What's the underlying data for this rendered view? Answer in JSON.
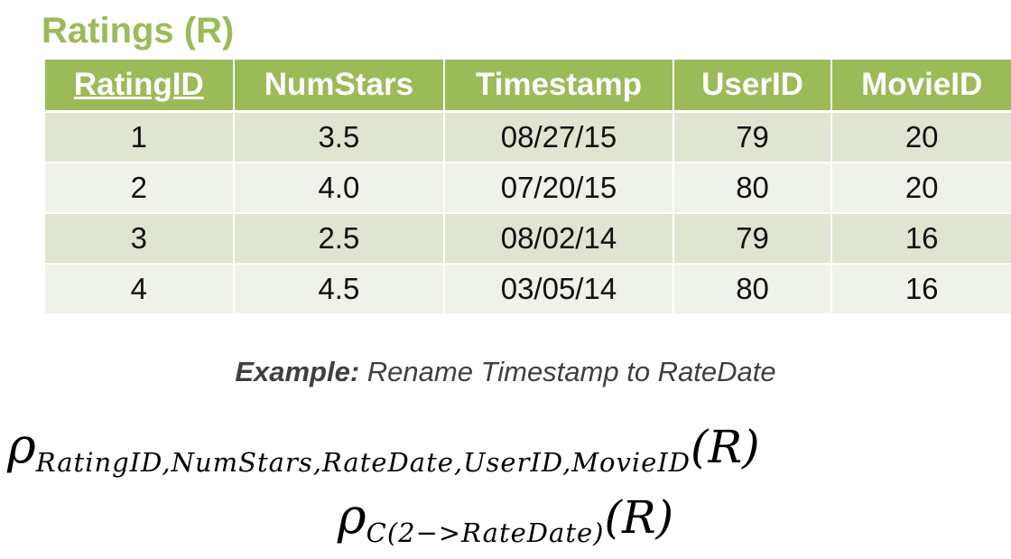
{
  "title": "Ratings (R)",
  "table": {
    "headers": [
      "RatingID",
      "NumStars",
      "Timestamp",
      "UserID",
      "MovieID"
    ],
    "rows": [
      [
        "1",
        "3.5",
        "08/27/15",
        "79",
        "20"
      ],
      [
        "2",
        "4.0",
        "07/20/15",
        "80",
        "20"
      ],
      [
        "3",
        "2.5",
        "08/02/14",
        "79",
        "16"
      ],
      [
        "4",
        "4.5",
        "03/05/14",
        "80",
        "16"
      ]
    ]
  },
  "example": {
    "label": "Example:",
    "text": " Rename Timestamp to RateDate"
  },
  "formula1": {
    "symbol": "ρ",
    "subscript": "RatingID,NumStars,RateDate,UserID,MovieID",
    "argument": "(R)"
  },
  "formula2": {
    "symbol": "ρ",
    "subscript": "C(2−>RateDate)",
    "argument": "(R)"
  },
  "colors": {
    "accent": "#9bbb59",
    "row_odd": "#dfe5d0",
    "row_even": "#eff2e9",
    "example_text": "#3f3f3f"
  }
}
